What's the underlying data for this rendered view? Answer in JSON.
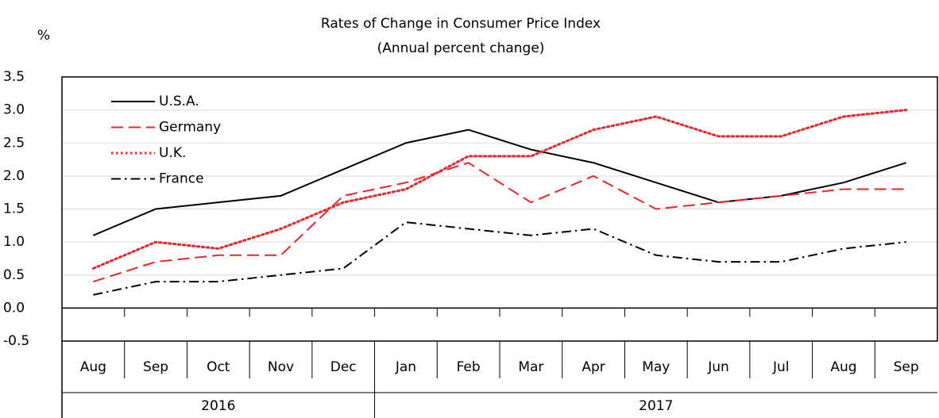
{
  "chart_data": {
    "type": "line",
    "title": "Rates of Change in Consumer Price Index",
    "subtitle": "(Annual percent change)",
    "y_label": "%",
    "categories": [
      "Aug",
      "Sep",
      "Oct",
      "Nov",
      "Dec",
      "Jan",
      "Feb",
      "Mar",
      "Apr",
      "May",
      "Jun",
      "Jul",
      "Aug",
      "Sep"
    ],
    "years": [
      "2016",
      "2017"
    ],
    "series": [
      {
        "name": "U.S.A.",
        "color": "#000000",
        "dash": "solid",
        "values": [
          1.1,
          1.5,
          1.6,
          1.7,
          2.1,
          2.5,
          2.7,
          2.4,
          2.2,
          1.9,
          1.6,
          1.7,
          1.9,
          2.2
        ]
      },
      {
        "name": "Germany",
        "color": "#e8262b",
        "dash": "dashed",
        "values": [
          0.4,
          0.7,
          0.8,
          0.8,
          1.7,
          1.9,
          2.2,
          1.6,
          2.0,
          1.5,
          1.6,
          1.7,
          1.8,
          1.8
        ]
      },
      {
        "name": "U.K.",
        "color": "#e8262b",
        "dash": "dotted",
        "values": [
          0.6,
          1.0,
          0.9,
          1.2,
          1.6,
          1.8,
          2.3,
          2.3,
          2.7,
          2.9,
          2.6,
          2.6,
          2.9,
          3.0
        ]
      },
      {
        "name": "France",
        "color": "#000000",
        "dash": "dashdot",
        "values": [
          0.2,
          0.4,
          0.4,
          0.5,
          0.6,
          1.3,
          1.2,
          1.1,
          1.2,
          0.8,
          0.7,
          0.7,
          0.9,
          1.0
        ]
      }
    ],
    "ylim": [
      -0.5,
      3.5
    ],
    "yticks": [
      -0.5,
      {
        "value": 0,
        "label": "0.0"
      },
      0.5,
      {
        "value": 1,
        "label": "1.0"
      },
      1.5,
      {
        "value": 2,
        "label": "2.0"
      },
      2.5,
      {
        "value": 3,
        "label": "3.0"
      },
      3.5
    ],
    "grid": true,
    "legend": "upper left"
  }
}
